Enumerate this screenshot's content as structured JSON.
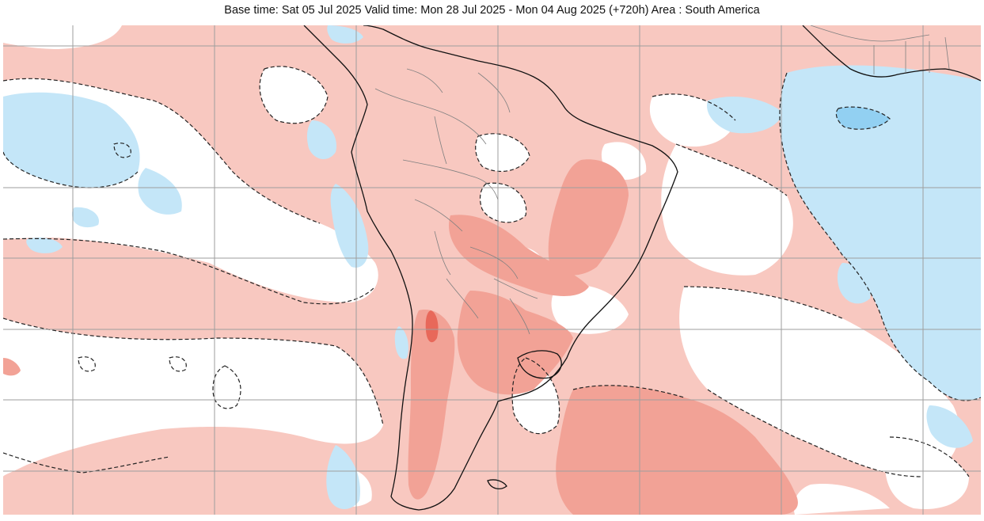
{
  "header": {
    "title": "Base time: Sat 05 Jul 2025 Valid time: Mon 28 Jul 2025 - Mon 04 Aug 2025 (+720h) Area : South America"
  },
  "map": {
    "type": "anomaly-map",
    "colors": {
      "warm_light": "#f8c8c0",
      "warm_medium": "#f2a296",
      "warm_strong": "#e8685a",
      "cool_light": "#c4e6f8",
      "cool_medium": "#92d0f2",
      "land_outline": "#111111",
      "borders": "#808080",
      "gridline": "#9e9e9e",
      "contour": "#222222"
    }
  }
}
